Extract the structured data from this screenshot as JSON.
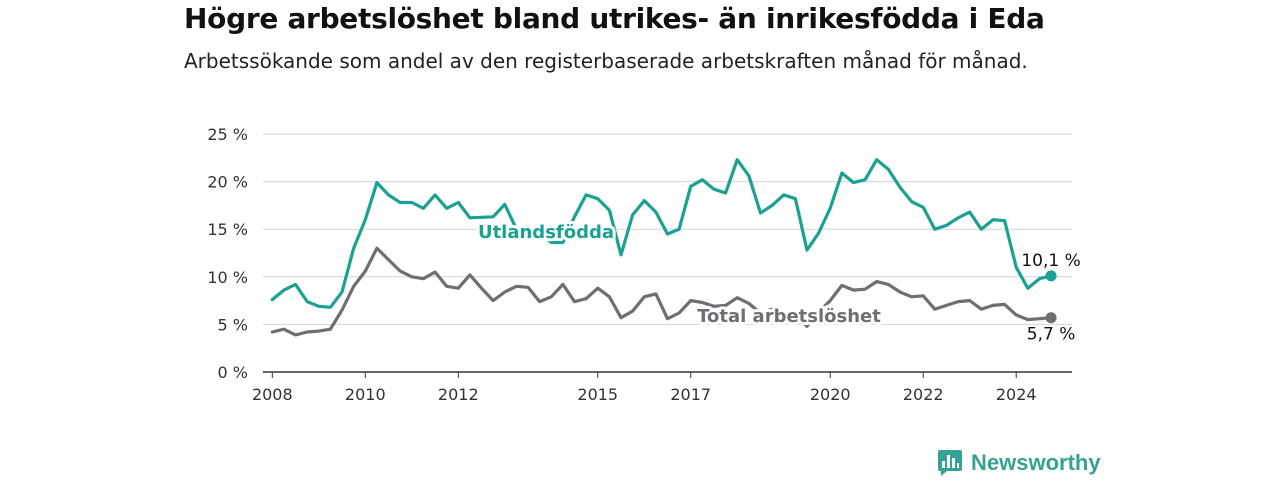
{
  "header": {
    "title": "Högre arbetslöshet bland utrikes- än inrikesfödda i Eda",
    "subtitle": "Arbetssökande som andel av den registerbaserade arbetskraften månad för månad."
  },
  "brand": {
    "name": "Newsworthy",
    "color": "#36a195"
  },
  "chart_data": {
    "type": "line",
    "title": "Högre arbetslöshet bland utrikes- än inrikesfödda i Eda",
    "subtitle": "Arbetssökande som andel av den registerbaserade arbetskraften månad för månad.",
    "xlabel": "",
    "ylabel": "",
    "ylim": [
      0,
      25
    ],
    "y_ticks": [
      "0 %",
      "5 %",
      "10 %",
      "15 %",
      "20 %",
      "25 %"
    ],
    "x_ticks": [
      "2008",
      "2010",
      "2012",
      "2015",
      "2017",
      "2020",
      "2022",
      "2024"
    ],
    "grid": true,
    "series": [
      {
        "name": "Utlandsfödda",
        "color": "#1aa193",
        "end_label": "10,1 %",
        "points": [
          [
            "2008-01",
            7.6
          ],
          [
            "2008-04",
            8.6
          ],
          [
            "2008-07",
            9.2
          ],
          [
            "2008-10",
            7.4
          ],
          [
            "2009-01",
            6.9
          ],
          [
            "2009-04",
            6.8
          ],
          [
            "2009-07",
            8.4
          ],
          [
            "2009-10",
            13.0
          ],
          [
            "2010-01",
            16.0
          ],
          [
            "2010-04",
            19.9
          ],
          [
            "2010-07",
            18.6
          ],
          [
            "2010-10",
            17.8
          ],
          [
            "2011-01",
            17.8
          ],
          [
            "2011-04",
            17.2
          ],
          [
            "2011-07",
            18.6
          ],
          [
            "2011-10",
            17.2
          ],
          [
            "2012-01",
            17.8
          ],
          [
            "2012-04",
            16.2
          ],
          [
            "2012-10",
            16.3
          ],
          [
            "2013-01",
            17.6
          ],
          [
            "2013-04",
            15.0
          ],
          [
            "2013-07",
            14.0
          ],
          [
            "2013-10",
            14.6
          ],
          [
            "2014-01",
            13.6
          ],
          [
            "2014-04",
            13.6
          ],
          [
            "2014-07",
            16.3
          ],
          [
            "2014-10",
            18.6
          ],
          [
            "2015-01",
            18.2
          ],
          [
            "2015-04",
            17.0
          ],
          [
            "2015-07",
            12.3
          ],
          [
            "2015-10",
            16.5
          ],
          [
            "2016-01",
            18.0
          ],
          [
            "2016-04",
            16.8
          ],
          [
            "2016-07",
            14.5
          ],
          [
            "2016-10",
            15.0
          ],
          [
            "2017-01",
            19.5
          ],
          [
            "2017-04",
            20.2
          ],
          [
            "2017-07",
            19.2
          ],
          [
            "2017-10",
            18.8
          ],
          [
            "2018-01",
            22.3
          ],
          [
            "2018-04",
            20.6
          ],
          [
            "2018-07",
            16.7
          ],
          [
            "2018-10",
            17.5
          ],
          [
            "2019-01",
            18.6
          ],
          [
            "2019-04",
            18.2
          ],
          [
            "2019-07",
            12.8
          ],
          [
            "2019-10",
            14.6
          ],
          [
            "2020-01",
            17.2
          ],
          [
            "2020-04",
            20.9
          ],
          [
            "2020-07",
            19.9
          ],
          [
            "2020-10",
            20.2
          ],
          [
            "2021-01",
            22.3
          ],
          [
            "2021-04",
            21.3
          ],
          [
            "2021-07",
            19.4
          ],
          [
            "2021-10",
            17.9
          ],
          [
            "2022-01",
            17.3
          ],
          [
            "2022-04",
            15.0
          ],
          [
            "2022-07",
            15.4
          ],
          [
            "2022-10",
            16.2
          ],
          [
            "2023-01",
            16.8
          ],
          [
            "2023-04",
            15.0
          ],
          [
            "2023-07",
            16.0
          ],
          [
            "2023-10",
            15.9
          ],
          [
            "2024-01",
            11.0
          ],
          [
            "2024-04",
            8.8
          ],
          [
            "2024-07",
            9.8
          ],
          [
            "2024-10",
            10.1
          ]
        ]
      },
      {
        "name": "Total arbetslöshet",
        "color": "#6e6e73",
        "end_label": "5,7 %",
        "points": [
          [
            "2008-01",
            4.2
          ],
          [
            "2008-04",
            4.5
          ],
          [
            "2008-07",
            3.9
          ],
          [
            "2008-10",
            4.2
          ],
          [
            "2009-01",
            4.3
          ],
          [
            "2009-04",
            4.5
          ],
          [
            "2009-07",
            6.5
          ],
          [
            "2009-10",
            9.0
          ],
          [
            "2010-01",
            10.6
          ],
          [
            "2010-04",
            13.0
          ],
          [
            "2010-07",
            11.8
          ],
          [
            "2010-10",
            10.6
          ],
          [
            "2011-01",
            10.0
          ],
          [
            "2011-04",
            9.8
          ],
          [
            "2011-07",
            10.5
          ],
          [
            "2011-10",
            9.0
          ],
          [
            "2012-01",
            8.8
          ],
          [
            "2012-04",
            10.2
          ],
          [
            "2012-07",
            8.8
          ],
          [
            "2012-10",
            7.5
          ],
          [
            "2013-01",
            8.4
          ],
          [
            "2013-04",
            9.0
          ],
          [
            "2013-07",
            8.9
          ],
          [
            "2013-10",
            7.4
          ],
          [
            "2014-01",
            7.9
          ],
          [
            "2014-04",
            9.2
          ],
          [
            "2014-07",
            7.4
          ],
          [
            "2014-10",
            7.7
          ],
          [
            "2015-01",
            8.8
          ],
          [
            "2015-04",
            7.9
          ],
          [
            "2015-07",
            5.7
          ],
          [
            "2015-10",
            6.4
          ],
          [
            "2016-01",
            7.9
          ],
          [
            "2016-04",
            8.2
          ],
          [
            "2016-07",
            5.6
          ],
          [
            "2016-10",
            6.2
          ],
          [
            "2017-01",
            7.5
          ],
          [
            "2017-04",
            7.3
          ],
          [
            "2017-07",
            6.9
          ],
          [
            "2017-10",
            7.0
          ],
          [
            "2018-01",
            7.8
          ],
          [
            "2018-04",
            7.2
          ],
          [
            "2018-07",
            6.2
          ],
          [
            "2018-10",
            6.6
          ],
          [
            "2019-01",
            5.8
          ],
          [
            "2019-04",
            6.0
          ],
          [
            "2019-07",
            4.8
          ],
          [
            "2019-10",
            6.3
          ],
          [
            "2020-01",
            7.5
          ],
          [
            "2020-04",
            9.1
          ],
          [
            "2020-07",
            8.6
          ],
          [
            "2020-10",
            8.7
          ],
          [
            "2021-01",
            9.5
          ],
          [
            "2021-04",
            9.2
          ],
          [
            "2021-07",
            8.4
          ],
          [
            "2021-10",
            7.9
          ],
          [
            "2022-01",
            8.0
          ],
          [
            "2022-04",
            6.6
          ],
          [
            "2022-07",
            7.0
          ],
          [
            "2022-10",
            7.4
          ],
          [
            "2023-01",
            7.5
          ],
          [
            "2023-04",
            6.6
          ],
          [
            "2023-07",
            7.0
          ],
          [
            "2023-10",
            7.1
          ],
          [
            "2024-01",
            6.0
          ],
          [
            "2024-04",
            5.5
          ],
          [
            "2024-07",
            5.6
          ],
          [
            "2024-10",
            5.7
          ]
        ]
      }
    ]
  }
}
